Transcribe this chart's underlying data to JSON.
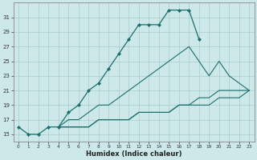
{
  "xlabel": "Humidex (Indice chaleur)",
  "bg_color": "#cde8e8",
  "grid_color": "#aacccc",
  "line_color": "#1a6e6e",
  "xlim": [
    -0.5,
    23.5
  ],
  "ylim": [
    14.0,
    33.0
  ],
  "xticks": [
    0,
    1,
    2,
    3,
    4,
    5,
    6,
    7,
    8,
    9,
    10,
    11,
    12,
    13,
    14,
    15,
    16,
    17,
    18,
    19,
    20,
    21,
    22,
    23
  ],
  "yticks": [
    15,
    17,
    19,
    21,
    23,
    25,
    27,
    29,
    31
  ],
  "series1_x": [
    0,
    1,
    2,
    3,
    4,
    5,
    6,
    7,
    8,
    9,
    10,
    11,
    12,
    13,
    14,
    15,
    16,
    17,
    18
  ],
  "series1_y": [
    16,
    15,
    15,
    16,
    16,
    18,
    19,
    21,
    22,
    24,
    26,
    28,
    30,
    30,
    30,
    32,
    32,
    32,
    28
  ],
  "series2_x": [
    4,
    5,
    6,
    7,
    8,
    9,
    10,
    11,
    12,
    13,
    14,
    15,
    16,
    17,
    18,
    19,
    20,
    21,
    22,
    23
  ],
  "series2_y": [
    16,
    17,
    17,
    18,
    19,
    19,
    20,
    21,
    22,
    23,
    24,
    25,
    26,
    27,
    25,
    23,
    25,
    23,
    22,
    21
  ],
  "series3_x": [
    4,
    5,
    6,
    7,
    8,
    9,
    10,
    11,
    12,
    13,
    14,
    15,
    16,
    17,
    18,
    19,
    20,
    21,
    22,
    23
  ],
  "series3_y": [
    16,
    16,
    16,
    16,
    17,
    17,
    17,
    17,
    18,
    18,
    18,
    18,
    19,
    19,
    19,
    19,
    20,
    20,
    20,
    21
  ],
  "series4_x": [
    4,
    5,
    6,
    7,
    8,
    9,
    10,
    11,
    12,
    13,
    14,
    15,
    16,
    17,
    18,
    19,
    20,
    21,
    22,
    23
  ],
  "series4_y": [
    16,
    16,
    16,
    16,
    17,
    17,
    17,
    17,
    18,
    18,
    18,
    18,
    19,
    19,
    20,
    20,
    21,
    21,
    21,
    21
  ]
}
